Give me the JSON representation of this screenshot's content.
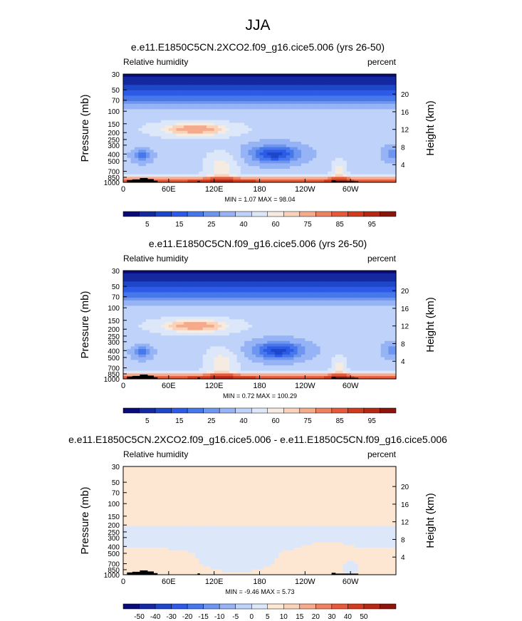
{
  "figure": {
    "title": "JJA"
  },
  "chart_data": [
    {
      "type": "heatmap",
      "title": "e.e11.E1850C5CN.2XCO2.f09_g16.cice5.006 (yrs 26-50)",
      "left_string": "Relative humidity",
      "right_string": "percent",
      "ylabel": "Pressure (mb)",
      "ylabel_right": "Height (km)",
      "x_ticks": [
        "0",
        "60E",
        "120E",
        "180",
        "120W",
        "60W"
      ],
      "y_ticks": [
        "30",
        "50",
        "70",
        "100",
        "150",
        "200",
        "250",
        "300",
        "400",
        "500",
        "700",
        "850",
        "1000"
      ],
      "y_ticks_right": [
        "20",
        "16",
        "12",
        "8",
        "4"
      ],
      "stats": "MIN =   1.07  MAX =  98.04",
      "min": 1.07,
      "max": 98.04,
      "colorbar_labels": [
        "5",
        "15",
        "25",
        "40",
        "60",
        "75",
        "85",
        "95"
      ]
    },
    {
      "type": "heatmap",
      "title": "e.e11.E1850C5CN.f09_g16.cice5.006 (yrs 26-50)",
      "left_string": "Relative humidity",
      "right_string": "percent",
      "ylabel": "Pressure (mb)",
      "ylabel_right": "Height (km)",
      "x_ticks": [
        "0",
        "60E",
        "120E",
        "180",
        "120W",
        "60W"
      ],
      "y_ticks": [
        "30",
        "50",
        "70",
        "100",
        "150",
        "200",
        "250",
        "300",
        "400",
        "500",
        "700",
        "850",
        "1000"
      ],
      "y_ticks_right": [
        "20",
        "16",
        "12",
        "8",
        "4"
      ],
      "stats": "MIN =   0.72  MAX = 100.29",
      "min": 0.72,
      "max": 100.29,
      "colorbar_labels": [
        "5",
        "15",
        "25",
        "40",
        "60",
        "75",
        "85",
        "95"
      ]
    },
    {
      "type": "heatmap",
      "title": "e.e11.E1850C5CN.2XCO2.f09_g16.cice5.006 - e.e11.E1850C5CN.f09_g16.cice5.006",
      "left_string": "Relative humidity",
      "right_string": "percent",
      "ylabel": "Pressure (mb)",
      "ylabel_right": "Height (km)",
      "x_ticks": [
        "0",
        "60E",
        "120E",
        "180",
        "120W",
        "60W"
      ],
      "y_ticks": [
        "30",
        "50",
        "70",
        "100",
        "150",
        "200",
        "250",
        "300",
        "400",
        "500",
        "700",
        "850",
        "1000"
      ],
      "y_ticks_right": [
        "20",
        "16",
        "12",
        "8",
        "4"
      ],
      "stats": "MIN =  -9.46  MAX =   5.73",
      "min": -9.46,
      "max": 5.73,
      "colorbar_labels": [
        "-50",
        "-40",
        "-30",
        "-20",
        "-15",
        "-10",
        "-5",
        "0",
        "5",
        "10",
        "15",
        "20",
        "30",
        "40",
        "50"
      ]
    }
  ],
  "colors": {
    "abs_palette": [
      "#0a0a78",
      "#1428a0",
      "#1e46c8",
      "#2d5ae6",
      "#4678eb",
      "#6e96f0",
      "#96b4f5",
      "#bed2fa",
      "#dce8fa",
      "#f5ebe1",
      "#fad2b9",
      "#f5aa8c",
      "#ee8260",
      "#e65a3c",
      "#d23c1e",
      "#b42814",
      "#8c140a"
    ],
    "diff_palette": [
      "#0a0a78",
      "#1428a0",
      "#1e46c8",
      "#2d5ae6",
      "#4678eb",
      "#6e96f0",
      "#96b4f5",
      "#bed2fa",
      "#dce8fa",
      "#fde6d2",
      "#fad2b9",
      "#f5aa8c",
      "#ee8260",
      "#e65a3c",
      "#d23c1e",
      "#b42814",
      "#8c140a"
    ],
    "terrain": "#000000"
  }
}
